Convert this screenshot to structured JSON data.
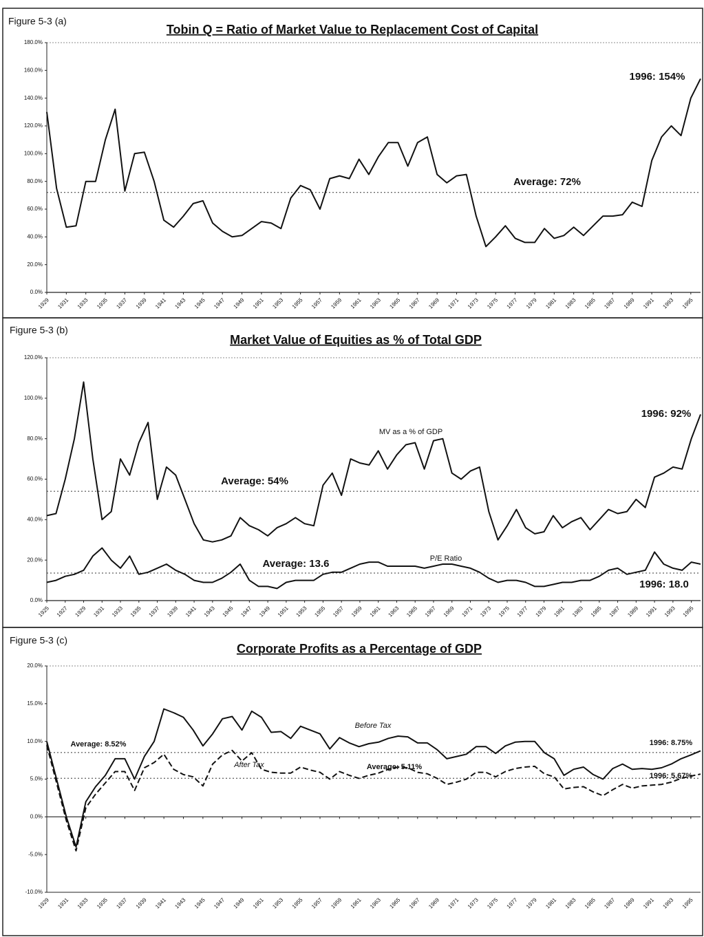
{
  "chart_data": [
    {
      "type": "line",
      "figure_label": "Figure 5-3 (a)",
      "title": "Tobin Q = Ratio of Market Value to Replacement Cost of Capital",
      "color": "#111111",
      "x": [
        1929,
        1930,
        1931,
        1932,
        1933,
        1934,
        1935,
        1936,
        1937,
        1938,
        1939,
        1940,
        1941,
        1942,
        1943,
        1944,
        1945,
        1946,
        1947,
        1948,
        1949,
        1950,
        1951,
        1952,
        1953,
        1954,
        1955,
        1956,
        1957,
        1958,
        1959,
        1960,
        1961,
        1962,
        1963,
        1964,
        1965,
        1966,
        1967,
        1968,
        1969,
        1970,
        1971,
        1972,
        1973,
        1974,
        1975,
        1976,
        1977,
        1978,
        1979,
        1980,
        1981,
        1982,
        1983,
        1984,
        1985,
        1986,
        1987,
        1988,
        1989,
        1990,
        1991,
        1992,
        1993,
        1994,
        1995,
        1996
      ],
      "values": [
        130,
        75,
        47,
        48,
        80,
        80,
        110,
        132,
        73,
        100,
        101,
        80,
        52,
        47,
        55,
        64,
        66,
        50,
        44,
        40,
        41,
        46,
        51,
        50,
        46,
        68,
        77,
        74,
        60,
        82,
        84,
        82,
        96,
        85,
        98,
        108,
        108,
        91,
        108,
        112,
        85,
        79,
        84,
        85,
        55,
        33,
        40,
        48,
        39,
        36,
        36,
        46,
        39,
        41,
        47,
        41,
        48,
        55,
        55,
        56,
        65,
        62,
        95,
        112,
        120,
        113,
        140,
        154
      ],
      "xlim": [
        1929,
        1996
      ],
      "xticks": [
        1929,
        1931,
        1933,
        1935,
        1937,
        1939,
        1941,
        1943,
        1945,
        1947,
        1949,
        1951,
        1953,
        1955,
        1957,
        1959,
        1961,
        1963,
        1965,
        1967,
        1969,
        1971,
        1973,
        1975,
        1977,
        1979,
        1981,
        1983,
        1985,
        1987,
        1989,
        1991,
        1993,
        1995
      ],
      "ylim": [
        0,
        180
      ],
      "yticks": [
        {
          "value": 0,
          "label": "0.0%"
        },
        {
          "value": 20,
          "label": "20.0%"
        },
        {
          "value": 40,
          "label": "40.0%"
        },
        {
          "value": 60,
          "label": "60.0%"
        },
        {
          "value": 80,
          "label": "80.0%"
        },
        {
          "value": 100,
          "label": "100.0%"
        },
        {
          "value": 120,
          "label": "120.0%"
        },
        {
          "value": 140,
          "label": "140.0%"
        },
        {
          "value": 160,
          "label": "160.0%"
        },
        {
          "value": 180,
          "label": "180.0%"
        }
      ],
      "averages": [
        {
          "value": 72,
          "label": "Average: 72%"
        }
      ],
      "annotations": [
        "1996: 154%"
      ]
    },
    {
      "type": "line",
      "figure_label": "Figure 5-3 (b)",
      "title": "Market Value of Equities as % of Total GDP",
      "x": [
        1925,
        1926,
        1927,
        1928,
        1929,
        1930,
        1931,
        1932,
        1933,
        1934,
        1935,
        1936,
        1937,
        1938,
        1939,
        1940,
        1941,
        1942,
        1943,
        1944,
        1945,
        1946,
        1947,
        1948,
        1949,
        1950,
        1951,
        1952,
        1953,
        1954,
        1955,
        1956,
        1957,
        1958,
        1959,
        1960,
        1961,
        1962,
        1963,
        1964,
        1965,
        1966,
        1967,
        1968,
        1969,
        1970,
        1971,
        1972,
        1973,
        1974,
        1975,
        1976,
        1977,
        1978,
        1979,
        1980,
        1981,
        1982,
        1983,
        1984,
        1985,
        1986,
        1987,
        1988,
        1989,
        1990,
        1991,
        1992,
        1993,
        1994,
        1995,
        1996
      ],
      "series": [
        {
          "name": "MV as a % of GDP",
          "color": "#111111",
          "values": [
            42,
            43,
            60,
            80,
            108,
            70,
            40,
            44,
            70,
            62,
            78,
            88,
            50,
            66,
            62,
            50,
            38,
            30,
            29,
            30,
            32,
            41,
            37,
            35,
            32,
            36,
            38,
            41,
            38,
            37,
            57,
            63,
            52,
            70,
            68,
            67,
            74,
            65,
            72,
            77,
            78,
            65,
            79,
            80,
            63,
            60,
            64,
            66,
            44,
            30,
            37,
            45,
            36,
            33,
            34,
            42,
            36,
            39,
            41,
            35,
            40,
            45,
            43,
            44,
            50,
            46,
            61,
            63,
            66,
            65,
            80,
            92
          ]
        },
        {
          "name": "P/E Ratio",
          "color": "#111111",
          "values": [
            9,
            10,
            12,
            13,
            15,
            22,
            26,
            20,
            16,
            22,
            13,
            14,
            16,
            18,
            15,
            13,
            10,
            9,
            9,
            11,
            14,
            18,
            10,
            7,
            7,
            6,
            9,
            10,
            10,
            10,
            13,
            14,
            14,
            16,
            18,
            19,
            19,
            17,
            17,
            17,
            17,
            16,
            17,
            18,
            18,
            17,
            16,
            14,
            11,
            9,
            10,
            10,
            9,
            7,
            7,
            8,
            9,
            9,
            10,
            10,
            12,
            15,
            16,
            13,
            14,
            15,
            24,
            18,
            16,
            15,
            19,
            18
          ]
        }
      ],
      "xlim": [
        1925,
        1996
      ],
      "xticks": [
        1925,
        1927,
        1929,
        1931,
        1933,
        1935,
        1937,
        1939,
        1941,
        1943,
        1945,
        1947,
        1949,
        1951,
        1953,
        1955,
        1957,
        1959,
        1961,
        1963,
        1965,
        1967,
        1969,
        1971,
        1973,
        1975,
        1977,
        1979,
        1981,
        1983,
        1985,
        1987,
        1989,
        1991,
        1993,
        1995
      ],
      "ylim": [
        0,
        120
      ],
      "yticks": [
        {
          "value": 0,
          "label": "0.0%"
        },
        {
          "value": 20,
          "label": "20.0%"
        },
        {
          "value": 40,
          "label": "40.0%"
        },
        {
          "value": 60,
          "label": "60.0%"
        },
        {
          "value": 80,
          "label": "80.0%"
        },
        {
          "value": 100,
          "label": "100.0%"
        },
        {
          "value": 120,
          "label": "120.0%"
        }
      ],
      "averages": [
        {
          "value": 54,
          "label": "Average: 54%"
        },
        {
          "value": 13.6,
          "label": "Average: 13.6"
        }
      ],
      "annotations": [
        "1996: 92%",
        "1996: 18.0"
      ]
    },
    {
      "type": "line",
      "figure_label": "Figure 5-3 (c)",
      "title": "Corporate Profits as a Percentage of GDP",
      "x": [
        1929,
        1930,
        1931,
        1932,
        1933,
        1934,
        1935,
        1936,
        1937,
        1938,
        1939,
        1940,
        1941,
        1942,
        1943,
        1944,
        1945,
        1946,
        1947,
        1948,
        1949,
        1950,
        1951,
        1952,
        1953,
        1954,
        1955,
        1956,
        1957,
        1958,
        1959,
        1960,
        1961,
        1962,
        1963,
        1964,
        1965,
        1966,
        1967,
        1968,
        1969,
        1970,
        1971,
        1972,
        1973,
        1974,
        1975,
        1976,
        1977,
        1978,
        1979,
        1980,
        1981,
        1982,
        1983,
        1984,
        1985,
        1986,
        1987,
        1988,
        1989,
        1990,
        1991,
        1992,
        1993,
        1994,
        1995,
        1996
      ],
      "series": [
        {
          "name": "Before Tax",
          "color": "#111111",
          "values": [
            10,
            5,
            0,
            -4,
            2,
            4,
            5.5,
            7.7,
            7.7,
            5,
            8,
            10,
            14.3,
            13.8,
            13.2,
            11.5,
            9.4,
            11,
            13,
            13.3,
            11.5,
            14,
            13.2,
            11.2,
            11.3,
            10.4,
            12,
            11.5,
            11,
            9,
            10.5,
            9.8,
            9.3,
            9.7,
            9.9,
            10.4,
            10.7,
            10.6,
            9.8,
            9.8,
            8.9,
            7.7,
            8,
            8.3,
            9.3,
            9.3,
            8.4,
            9.4,
            9.9,
            10,
            10,
            8.5,
            7.7,
            5.5,
            6.3,
            6.6,
            5.6,
            5,
            6.4,
            7,
            6.3,
            6.4,
            6.3,
            6.5,
            7,
            7.7,
            8.2,
            8.75
          ]
        },
        {
          "name": "After Tax",
          "color": "#111111",
          "dashed": true,
          "values": [
            9.5,
            4.5,
            -0.5,
            -4.5,
            1.2,
            3,
            4.5,
            6,
            6,
            3.5,
            6.5,
            7.2,
            8.3,
            6.3,
            5.6,
            5.3,
            4.1,
            7,
            8.2,
            8.8,
            7.4,
            8.5,
            6.3,
            5.9,
            5.8,
            5.8,
            6.6,
            6.2,
            5.9,
            5,
            6,
            5.5,
            5.1,
            5.5,
            5.8,
            6.3,
            6.6,
            6.5,
            5.9,
            5.7,
            5.1,
            4.3,
            4.6,
            5,
            5.9,
            5.9,
            5.3,
            6,
            6.4,
            6.6,
            6.7,
            5.7,
            5.3,
            3.7,
            3.9,
            4,
            3.3,
            2.8,
            3.6,
            4.3,
            3.8,
            4.1,
            4.2,
            4.3,
            4.6,
            5.1,
            5.4,
            5.67
          ]
        }
      ],
      "xlim": [
        1929,
        1996
      ],
      "xticks": [
        1929,
        1931,
        1933,
        1935,
        1937,
        1939,
        1941,
        1943,
        1945,
        1947,
        1949,
        1951,
        1953,
        1955,
        1957,
        1959,
        1961,
        1963,
        1965,
        1967,
        1969,
        1971,
        1973,
        1975,
        1977,
        1979,
        1981,
        1983,
        1985,
        1987,
        1989,
        1991,
        1993,
        1995
      ],
      "ylim": [
        -10,
        20
      ],
      "yticks": [
        {
          "value": -10,
          "label": "-10.0%"
        },
        {
          "value": -5,
          "label": "-5.0%"
        },
        {
          "value": 0,
          "label": "0.0%"
        },
        {
          "value": 5,
          "label": "5.0%"
        },
        {
          "value": 10,
          "label": "10.0%"
        },
        {
          "value": 15,
          "label": "15.0%"
        },
        {
          "value": 20,
          "label": "20.0%"
        }
      ],
      "averages": [
        {
          "value": 8.52,
          "label": "Average: 8.52%"
        },
        {
          "value": 5.11,
          "label": "Average: 5.11%"
        }
      ],
      "annotations": [
        "1996: 8.75%",
        "1996: 5.67%"
      ]
    }
  ]
}
